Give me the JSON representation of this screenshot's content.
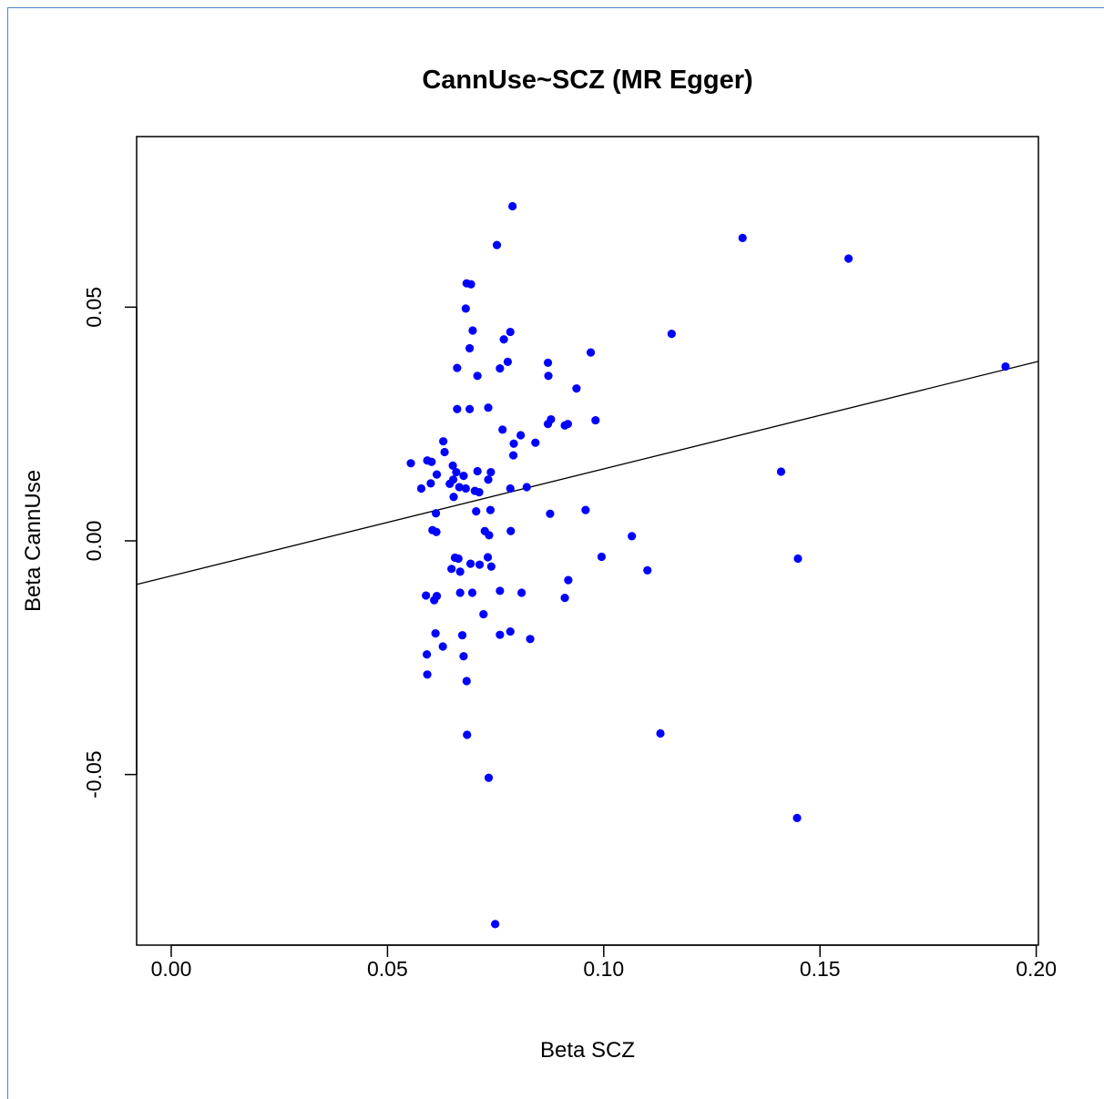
{
  "chart_data": {
    "type": "scatter",
    "title": "CannUse~SCZ (MR Egger)",
    "xlabel": "Beta SCZ",
    "ylabel": "Beta CannUse",
    "xlim": [
      -0.008,
      0.2005
    ],
    "ylim": [
      -0.0865,
      0.0865
    ],
    "x_ticks": [
      0.0,
      0.05,
      0.1,
      0.15,
      0.2
    ],
    "x_tick_labels": [
      "0.00",
      "0.05",
      "0.10",
      "0.15",
      "0.20"
    ],
    "y_ticks": [
      -0.05,
      0.0,
      0.05
    ],
    "y_tick_labels": [
      "-0.05",
      "0.00",
      "0.05"
    ],
    "grid": false,
    "legend": "none",
    "point_color": "#0000ff",
    "line_color": "#000000",
    "regression_line": {
      "intercept": -0.0075,
      "slope": 0.229
    },
    "points": [
      {
        "x": 0.0789,
        "y": 0.0716
      },
      {
        "x": 0.0753,
        "y": 0.0633
      },
      {
        "x": 0.1321,
        "y": 0.0648
      },
      {
        "x": 0.1566,
        "y": 0.0604
      },
      {
        "x": 0.0683,
        "y": 0.0551
      },
      {
        "x": 0.0693,
        "y": 0.0549
      },
      {
        "x": 0.0681,
        "y": 0.0497
      },
      {
        "x": 0.0697,
        "y": 0.045
      },
      {
        "x": 0.0784,
        "y": 0.0447
      },
      {
        "x": 0.1157,
        "y": 0.0443
      },
      {
        "x": 0.0769,
        "y": 0.0431
      },
      {
        "x": 0.069,
        "y": 0.0412
      },
      {
        "x": 0.097,
        "y": 0.0403
      },
      {
        "x": 0.0778,
        "y": 0.0383
      },
      {
        "x": 0.0871,
        "y": 0.0381
      },
      {
        "x": 0.0661,
        "y": 0.037
      },
      {
        "x": 0.076,
        "y": 0.0369
      },
      {
        "x": 0.1929,
        "y": 0.0373
      },
      {
        "x": 0.0708,
        "y": 0.0353
      },
      {
        "x": 0.0872,
        "y": 0.0353
      },
      {
        "x": 0.0937,
        "y": 0.0326
      },
      {
        "x": 0.0661,
        "y": 0.0282
      },
      {
        "x": 0.069,
        "y": 0.0282
      },
      {
        "x": 0.0733,
        "y": 0.0285
      },
      {
        "x": 0.0878,
        "y": 0.026
      },
      {
        "x": 0.0871,
        "y": 0.025
      },
      {
        "x": 0.0917,
        "y": 0.025
      },
      {
        "x": 0.091,
        "y": 0.0247
      },
      {
        "x": 0.0981,
        "y": 0.0258
      },
      {
        "x": 0.0766,
        "y": 0.0238
      },
      {
        "x": 0.0808,
        "y": 0.0226
      },
      {
        "x": 0.0629,
        "y": 0.0213
      },
      {
        "x": 0.0792,
        "y": 0.0208
      },
      {
        "x": 0.0842,
        "y": 0.021
      },
      {
        "x": 0.0632,
        "y": 0.019
      },
      {
        "x": 0.0791,
        "y": 0.0183
      },
      {
        "x": 0.0554,
        "y": 0.0166
      },
      {
        "x": 0.0592,
        "y": 0.0172
      },
      {
        "x": 0.0602,
        "y": 0.0169
      },
      {
        "x": 0.0651,
        "y": 0.0161
      },
      {
        "x": 0.0659,
        "y": 0.0147
      },
      {
        "x": 0.0614,
        "y": 0.0142
      },
      {
        "x": 0.0708,
        "y": 0.0149
      },
      {
        "x": 0.0739,
        "y": 0.0147
      },
      {
        "x": 0.0676,
        "y": 0.0139
      },
      {
        "x": 0.0652,
        "y": 0.0131
      },
      {
        "x": 0.0733,
        "y": 0.0131
      },
      {
        "x": 0.141,
        "y": 0.0148
      },
      {
        "x": 0.0644,
        "y": 0.0122
      },
      {
        "x": 0.06,
        "y": 0.0123
      },
      {
        "x": 0.0666,
        "y": 0.0115
      },
      {
        "x": 0.0681,
        "y": 0.0112
      },
      {
        "x": 0.0578,
        "y": 0.0112
      },
      {
        "x": 0.0702,
        "y": 0.0107
      },
      {
        "x": 0.0712,
        "y": 0.0104
      },
      {
        "x": 0.0784,
        "y": 0.0112
      },
      {
        "x": 0.0822,
        "y": 0.0115
      },
      {
        "x": 0.0653,
        "y": 0.0094
      },
      {
        "x": 0.0738,
        "y": 0.0066
      },
      {
        "x": 0.0705,
        "y": 0.0063
      },
      {
        "x": 0.0958,
        "y": 0.0066
      },
      {
        "x": 0.0612,
        "y": 0.0059
      },
      {
        "x": 0.0876,
        "y": 0.0058
      },
      {
        "x": 0.0604,
        "y": 0.0023
      },
      {
        "x": 0.0613,
        "y": 0.0019
      },
      {
        "x": 0.0725,
        "y": 0.0021
      },
      {
        "x": 0.0785,
        "y": 0.0021
      },
      {
        "x": 0.0735,
        "y": 0.0012
      },
      {
        "x": 0.1065,
        "y": 0.001
      },
      {
        "x": 0.0656,
        "y": -0.0036
      },
      {
        "x": 0.0664,
        "y": -0.0038
      },
      {
        "x": 0.0732,
        "y": -0.0035
      },
      {
        "x": 0.0995,
        "y": -0.0034
      },
      {
        "x": 0.1449,
        "y": -0.0038
      },
      {
        "x": 0.0692,
        "y": -0.0049
      },
      {
        "x": 0.0713,
        "y": -0.0051
      },
      {
        "x": 0.074,
        "y": -0.0055
      },
      {
        "x": 0.0648,
        "y": -0.006
      },
      {
        "x": 0.0668,
        "y": -0.0066
      },
      {
        "x": 0.1101,
        "y": -0.0063
      },
      {
        "x": 0.0918,
        "y": -0.0084
      },
      {
        "x": 0.0589,
        "y": -0.0117
      },
      {
        "x": 0.0614,
        "y": -0.0118
      },
      {
        "x": 0.0608,
        "y": -0.0127
      },
      {
        "x": 0.0668,
        "y": -0.0111
      },
      {
        "x": 0.0696,
        "y": -0.0111
      },
      {
        "x": 0.076,
        "y": -0.0107
      },
      {
        "x": 0.081,
        "y": -0.0111
      },
      {
        "x": 0.091,
        "y": -0.0122
      },
      {
        "x": 0.0722,
        "y": -0.0157
      },
      {
        "x": 0.0611,
        "y": -0.0198
      },
      {
        "x": 0.0673,
        "y": -0.0202
      },
      {
        "x": 0.076,
        "y": -0.0201
      },
      {
        "x": 0.0784,
        "y": -0.0194
      },
      {
        "x": 0.083,
        "y": -0.021
      },
      {
        "x": 0.0628,
        "y": -0.0226
      },
      {
        "x": 0.0591,
        "y": -0.0243
      },
      {
        "x": 0.0676,
        "y": -0.0247
      },
      {
        "x": 0.0592,
        "y": -0.0286
      },
      {
        "x": 0.0683,
        "y": -0.03
      },
      {
        "x": 0.0684,
        "y": -0.0415
      },
      {
        "x": 0.1131,
        "y": -0.0412
      },
      {
        "x": 0.0734,
        "y": -0.0507
      },
      {
        "x": 0.1447,
        "y": -0.0593
      },
      {
        "x": 0.0749,
        "y": -0.082
      }
    ]
  }
}
